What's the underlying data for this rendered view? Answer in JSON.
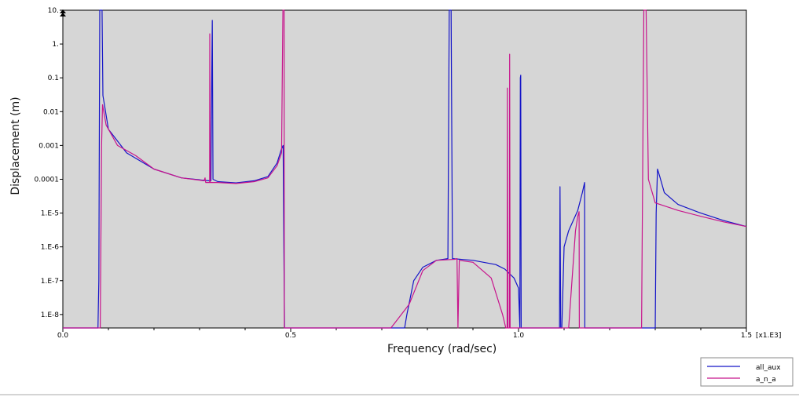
{
  "colors": {
    "plot_background": "#d6d6d6",
    "page_background": "#ffffff",
    "all_aux": "#1414c8",
    "a_n_a": "#c8148c"
  },
  "chart_data": {
    "type": "line",
    "xlabel": "Frequency (rad/sec)",
    "ylabel": "Displacement (m)",
    "x_scale_label": "[x1.E3]",
    "y_scale": "log",
    "xlim": [
      0,
      1.5
    ],
    "ylim": [
      4e-09,
      10
    ],
    "grid": false,
    "legend_position": "bottom-right",
    "x_ticks": [
      {
        "value": 0.0,
        "label": "0.0"
      },
      {
        "value": 0.5,
        "label": "0.5"
      },
      {
        "value": 1.0,
        "label": "1.0"
      },
      {
        "value": 1.5,
        "label": "1.5"
      }
    ],
    "y_ticks": [
      {
        "value": 10,
        "label": "10."
      },
      {
        "value": 1,
        "label": "1."
      },
      {
        "value": 0.1,
        "label": "0.1"
      },
      {
        "value": 0.01,
        "label": "0.01"
      },
      {
        "value": 0.001,
        "label": "0.001"
      },
      {
        "value": 0.0001,
        "label": "0.0001"
      },
      {
        "value": 1e-05,
        "label": "1.E-5"
      },
      {
        "value": 1e-06,
        "label": "1.E-6"
      },
      {
        "value": 1e-07,
        "label": "1.E-7"
      },
      {
        "value": 1e-08,
        "label": "1.E-8"
      }
    ],
    "series": [
      {
        "name": "all_aux",
        "color": "#1414c8",
        "points": [
          [
            0,
            4e-09
          ],
          [
            0.077,
            4e-09
          ],
          [
            0.079,
            1e-07
          ],
          [
            0.081,
            10
          ],
          [
            0.086,
            10
          ],
          [
            0.088,
            0.03
          ],
          [
            0.1,
            0.003
          ],
          [
            0.14,
            0.0006
          ],
          [
            0.2,
            0.0002
          ],
          [
            0.26,
            0.00011
          ],
          [
            0.32,
            9e-05
          ],
          [
            0.325,
            9e-05
          ],
          [
            0.3265,
            0.05
          ],
          [
            0.328,
            5
          ],
          [
            0.3295,
            0.0001
          ],
          [
            0.34,
            8.5e-05
          ],
          [
            0.38,
            7.8e-05
          ],
          [
            0.42,
            9e-05
          ],
          [
            0.45,
            0.00012
          ],
          [
            0.47,
            0.0003
          ],
          [
            0.48,
            0.0008
          ],
          [
            0.4835,
            0.001
          ],
          [
            0.485,
            1e-06
          ],
          [
            0.4865,
            4e-09
          ],
          [
            0.75,
            4e-09
          ],
          [
            0.755,
            1e-08
          ],
          [
            0.77,
            1e-07
          ],
          [
            0.79,
            2.5e-07
          ],
          [
            0.82,
            4e-07
          ],
          [
            0.845,
            4.5e-07
          ],
          [
            0.848,
            10
          ],
          [
            0.852,
            10
          ],
          [
            0.855,
            4.5e-07
          ],
          [
            0.9,
            4e-07
          ],
          [
            0.95,
            3e-07
          ],
          [
            0.97,
            2.2e-07
          ],
          [
            0.99,
            1.2e-07
          ],
          [
            1.0,
            6e-08
          ],
          [
            1.003,
            4e-09
          ],
          [
            1.004,
            0.1
          ],
          [
            1.0048,
            0.12
          ],
          [
            1.0058,
            4e-09
          ],
          [
            1.09,
            4e-09
          ],
          [
            1.091,
            6e-05
          ],
          [
            1.0925,
            4e-09
          ],
          [
            1.095,
            4e-09
          ],
          [
            1.1,
            1e-06
          ],
          [
            1.11,
            3e-06
          ],
          [
            1.12,
            6e-06
          ],
          [
            1.13,
            1.2e-05
          ],
          [
            1.14,
            4e-05
          ],
          [
            1.145,
            8e-05
          ],
          [
            1.1455,
            4e-09
          ],
          [
            1.3,
            4e-09
          ],
          [
            1.302,
            1e-05
          ],
          [
            1.305,
            0.0002
          ],
          [
            1.31,
            0.00012
          ],
          [
            1.32,
            4e-05
          ],
          [
            1.35,
            1.8e-05
          ],
          [
            1.4,
            1e-05
          ],
          [
            1.45,
            6e-06
          ],
          [
            1.5,
            4e-06
          ]
        ]
      },
      {
        "name": "a_n_a",
        "color": "#c8148c",
        "points": [
          [
            0,
            4e-09
          ],
          [
            0.082,
            4e-09
          ],
          [
            0.085,
            0.001
          ],
          [
            0.087,
            0.016
          ],
          [
            0.095,
            0.004
          ],
          [
            0.12,
            0.001
          ],
          [
            0.16,
            0.0005
          ],
          [
            0.2,
            0.0002
          ],
          [
            0.26,
            0.00011
          ],
          [
            0.31,
            9e-05
          ],
          [
            0.312,
            0.00011
          ],
          [
            0.3135,
            8e-05
          ],
          [
            0.322,
            8e-05
          ],
          [
            0.3225,
            2
          ],
          [
            0.3235,
            8e-05
          ],
          [
            0.34,
            8e-05
          ],
          [
            0.38,
            7.5e-05
          ],
          [
            0.42,
            8.5e-05
          ],
          [
            0.45,
            0.00011
          ],
          [
            0.47,
            0.00025
          ],
          [
            0.48,
            0.0006
          ],
          [
            0.483,
            10
          ],
          [
            0.4855,
            10
          ],
          [
            0.486,
            4e-09
          ],
          [
            0.72,
            4e-09
          ],
          [
            0.76,
            2e-08
          ],
          [
            0.79,
            2e-07
          ],
          [
            0.82,
            4e-07
          ],
          [
            0.86,
            4.3e-07
          ],
          [
            0.865,
            4.5e-07
          ],
          [
            0.867,
            4e-09
          ],
          [
            0.87,
            4e-07
          ],
          [
            0.9,
            3.5e-07
          ],
          [
            0.94,
            1.2e-07
          ],
          [
            0.965,
            1e-08
          ],
          [
            0.972,
            4e-09
          ],
          [
            0.975,
            4e-09
          ],
          [
            0.9755,
            0.05
          ],
          [
            0.9765,
            4e-09
          ],
          [
            0.98,
            4e-09
          ],
          [
            0.9805,
            0.5
          ],
          [
            0.9815,
            4e-09
          ],
          [
            1.11,
            4e-09
          ],
          [
            1.125,
            3e-06
          ],
          [
            1.13,
            8e-06
          ],
          [
            1.133,
            1.1e-05
          ],
          [
            1.1335,
            4e-09
          ],
          [
            1.27,
            4e-09
          ],
          [
            1.275,
            10
          ],
          [
            1.28,
            10
          ],
          [
            1.285,
            0.0001
          ],
          [
            1.3,
            2e-05
          ],
          [
            1.35,
            1.2e-05
          ],
          [
            1.4,
            8e-06
          ],
          [
            1.45,
            5.5e-06
          ],
          [
            1.5,
            4e-06
          ]
        ]
      }
    ]
  }
}
